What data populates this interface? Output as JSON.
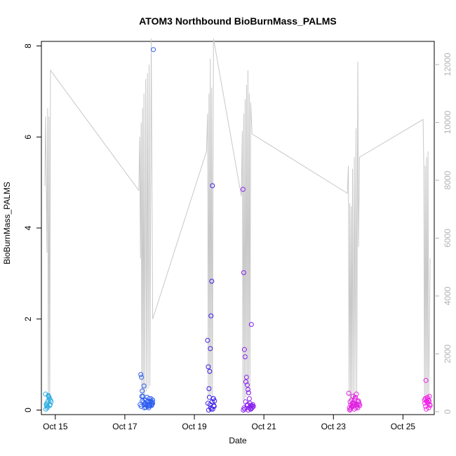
{
  "chart_data": {
    "type": "scatter",
    "title": "ATOM3 Northbound BioBurnMass_PALMS",
    "xlabel": "Date",
    "ylabel": "BioBurnMass_PALMS",
    "x_ticks": [
      "Oct 15",
      "Oct 17",
      "Oct 19",
      "Oct 21",
      "Oct 23",
      "Oct 25"
    ],
    "y_ticks": [
      "0",
      "2",
      "4",
      "6",
      "8"
    ],
    "y2_ticks": [
      "0",
      "2000",
      "4000",
      "6000",
      "8000",
      "10000",
      "12000"
    ],
    "xlim_days": [
      14.6,
      25.9
    ],
    "ylim": [
      -0.1,
      8.1
    ],
    "y2lim": [
      -100,
      12800
    ],
    "series": [
      {
        "x": [
          14.72,
          14.74,
          14.76,
          14.78,
          14.8,
          14.82,
          14.84,
          14.86,
          14.88,
          14.73,
          14.77,
          14.81,
          14.85,
          14.79,
          14.83,
          14.75
        ],
        "y": [
          0.35,
          0.12,
          0.15,
          0.08,
          0.32,
          0.28,
          0.1,
          0.22,
          0.18,
          0.02,
          0.05,
          0.3,
          0.12,
          0.2,
          0.25,
          0.1
        ],
        "color": "#29abe2"
      },
      {
        "x": [
          17.44,
          17.46,
          17.48,
          17.5,
          17.52,
          17.54,
          17.56,
          17.58,
          17.6,
          17.62,
          17.64,
          17.66,
          17.68,
          17.7,
          17.72,
          17.74,
          17.76,
          17.78,
          17.8,
          17.82,
          17.5,
          17.55,
          17.6,
          17.65,
          17.7,
          17.75,
          17.8,
          17.47,
          17.57,
          17.67,
          17.77,
          17.49,
          17.59,
          17.69,
          17.79
        ],
        "y": [
          0.12,
          0.78,
          0.72,
          0.2,
          0.3,
          0.18,
          0.05,
          0.15,
          0.22,
          0.1,
          0.28,
          0.12,
          0.08,
          0.25,
          0.1,
          0.2,
          0.15,
          0.12,
          0.22,
          7.92,
          0.42,
          0.53,
          0.06,
          0.18,
          0.1,
          0.25,
          0.15,
          0.08,
          0.12,
          0.2,
          0.1,
          0.3,
          0.15,
          0.05,
          0.18
        ],
        "color": "#2b5cf0"
      },
      {
        "x": [
          19.38,
          19.4,
          19.42,
          19.44,
          19.46,
          19.48,
          19.5,
          19.52,
          19.54,
          19.56,
          19.58,
          19.43,
          19.47,
          19.49,
          19.45,
          19.41,
          19.51,
          19.39,
          19.53,
          19.55,
          19.57
        ],
        "y": [
          1.53,
          0.95,
          0.47,
          0.85,
          1.35,
          2.07,
          2.83,
          4.93,
          0.25,
          0.1,
          0.2,
          0.28,
          0.05,
          0.02,
          0.12,
          0.0,
          0.18,
          0.15,
          0.02,
          0.25,
          0.08
        ],
        "color": "#3b1fe6"
      },
      {
        "x": [
          20.4,
          20.42,
          20.44,
          20.46,
          20.48,
          20.5,
          20.52,
          20.54,
          20.56,
          20.58,
          20.6,
          20.62,
          20.64,
          20.66,
          20.68,
          20.7,
          20.45,
          20.55,
          20.65,
          20.43,
          20.53,
          20.63,
          20.47,
          20.57,
          20.67,
          20.41,
          20.51,
          20.61
        ],
        "y": [
          4.85,
          3.02,
          1.33,
          1.17,
          0.62,
          0.72,
          0.55,
          0.45,
          0.38,
          0.25,
          0.15,
          0.1,
          1.88,
          0.05,
          0.12,
          0.08,
          0.02,
          0.0,
          0.1,
          0.05,
          0.12,
          0.02,
          0.18,
          0.05,
          0.08,
          0.0,
          0.1,
          0.03
        ],
        "color": "#8a1ff0"
      },
      {
        "x": [
          23.44,
          23.46,
          23.48,
          23.5,
          23.52,
          23.54,
          23.56,
          23.58,
          23.6,
          23.62,
          23.64,
          23.66,
          23.68,
          23.7,
          23.72,
          23.74,
          23.76,
          23.47,
          23.53,
          23.59,
          23.65,
          23.71,
          23.49,
          23.55,
          23.61,
          23.67,
          23.73,
          23.51,
          23.57,
          23.63
        ],
        "y": [
          0.37,
          0.05,
          0.18,
          0.12,
          0.22,
          0.08,
          0.3,
          0.15,
          0.02,
          0.25,
          0.1,
          0.35,
          0.12,
          0.05,
          0.2,
          0.15,
          0.1,
          0.0,
          0.08,
          0.12,
          0.05,
          0.18,
          0.02,
          0.15,
          0.22,
          0.08,
          0.12,
          0.05,
          0.1,
          0.28
        ],
        "color": "#e020e0"
      },
      {
        "x": [
          25.62,
          25.64,
          25.66,
          25.68,
          25.7,
          25.72,
          25.74,
          25.76,
          25.78,
          25.65,
          25.69,
          25.73,
          25.77,
          25.67,
          25.71,
          25.75,
          25.63
        ],
        "y": [
          0.22,
          0.25,
          0.65,
          0.2,
          0.28,
          0.15,
          0.05,
          0.3,
          0.1,
          0.08,
          0.18,
          0.22,
          0.12,
          0.02,
          0.25,
          0.2,
          0.15
        ],
        "color": "#f020e6"
      }
    ],
    "background_line": {
      "axis": "right",
      "color": "#c8c8c8",
      "points": [
        [
          14.7,
          7800
        ],
        [
          14.72,
          10200
        ],
        [
          14.74,
          8200
        ],
        [
          14.76,
          5500
        ],
        [
          14.78,
          10500
        ],
        [
          14.8,
          300
        ],
        [
          14.82,
          10200
        ],
        [
          14.84,
          400
        ],
        [
          14.86,
          11800
        ],
        [
          17.4,
          7650
        ],
        [
          17.43,
          9500
        ],
        [
          17.45,
          5300
        ],
        [
          17.47,
          10000
        ],
        [
          17.49,
          400
        ],
        [
          17.51,
          10500
        ],
        [
          17.53,
          600
        ],
        [
          17.55,
          11000
        ],
        [
          17.57,
          600
        ],
        [
          17.6,
          11500
        ],
        [
          17.62,
          700
        ],
        [
          17.65,
          11700
        ],
        [
          17.67,
          800
        ],
        [
          17.7,
          12000
        ],
        [
          17.72,
          900
        ],
        [
          17.76,
          12900
        ],
        [
          17.8,
          3200
        ],
        [
          19.35,
          9000
        ],
        [
          19.38,
          10300
        ],
        [
          19.4,
          500
        ],
        [
          19.42,
          11000
        ],
        [
          19.44,
          500
        ],
        [
          19.46,
          12200
        ],
        [
          19.48,
          600
        ],
        [
          19.5,
          11200
        ],
        [
          19.52,
          500
        ],
        [
          19.55,
          12900
        ],
        [
          20.35,
          7450
        ],
        [
          20.38,
          9700
        ],
        [
          20.4,
          400
        ],
        [
          20.42,
          10300
        ],
        [
          20.44,
          400
        ],
        [
          20.46,
          10800
        ],
        [
          20.48,
          500
        ],
        [
          20.5,
          11300
        ],
        [
          20.52,
          600
        ],
        [
          20.54,
          11800
        ],
        [
          20.56,
          700
        ],
        [
          20.58,
          11000
        ],
        [
          20.6,
          600
        ],
        [
          20.62,
          10700
        ],
        [
          20.66,
          9600
        ],
        [
          23.4,
          7550
        ],
        [
          23.43,
          8500
        ],
        [
          23.45,
          500
        ],
        [
          23.47,
          7200
        ],
        [
          23.49,
          400
        ],
        [
          23.51,
          7100
        ],
        [
          23.53,
          400
        ],
        [
          23.55,
          8400
        ],
        [
          23.57,
          500
        ],
        [
          23.6,
          8800
        ],
        [
          23.62,
          600
        ],
        [
          23.65,
          9800
        ],
        [
          23.67,
          600
        ],
        [
          23.7,
          12100
        ],
        [
          23.72,
          5700
        ],
        [
          23.75,
          8800
        ],
        [
          25.58,
          10100
        ],
        [
          25.6,
          8500
        ],
        [
          25.62,
          400
        ],
        [
          25.64,
          8500
        ],
        [
          25.66,
          400
        ],
        [
          25.68,
          8800
        ],
        [
          25.7,
          600
        ],
        [
          25.72,
          9000
        ],
        [
          25.74,
          500
        ],
        [
          25.78,
          5300
        ]
      ]
    }
  }
}
